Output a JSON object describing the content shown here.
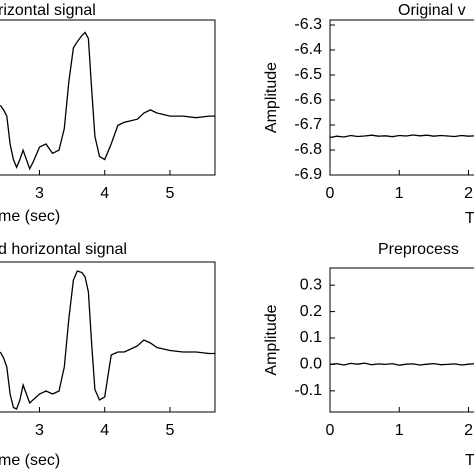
{
  "chart_data": [
    {
      "type": "line",
      "title": "rizontal signal",
      "xlabel": "me (sec)",
      "color": "#000000",
      "x": [
        2.4,
        2.45,
        2.5,
        2.55,
        2.6,
        2.65,
        2.7,
        2.75,
        2.8,
        2.85,
        2.9,
        3.0,
        3.1,
        3.2,
        3.3,
        3.38,
        3.45,
        3.52,
        3.58,
        3.65,
        3.7,
        3.75,
        3.8,
        3.85,
        3.92,
        4.0,
        4.1,
        4.2,
        4.3,
        4.4,
        4.5,
        4.6,
        4.7,
        4.8,
        4.9,
        5.0,
        5.2,
        5.4,
        5.6,
        5.69
      ],
      "values": [
        0.45,
        0.42,
        0.38,
        0.2,
        0.1,
        0.05,
        0.1,
        0.16,
        0.1,
        0.04,
        0.08,
        0.18,
        0.2,
        0.14,
        0.16,
        0.3,
        0.6,
        0.82,
        0.86,
        0.9,
        0.92,
        0.88,
        0.55,
        0.25,
        0.12,
        0.1,
        0.2,
        0.32,
        0.34,
        0.35,
        0.36,
        0.4,
        0.42,
        0.4,
        0.39,
        0.38,
        0.38,
        0.37,
        0.38,
        0.38
      ],
      "xlim": [
        2.38,
        5.69
      ],
      "ylim": [
        0,
        1
      ],
      "xticks": [
        3,
        4,
        5
      ]
    },
    {
      "type": "line",
      "title": "Original v",
      "xlabel": "T",
      "ylabel": "Amplitude",
      "color": "#000000",
      "x": [
        0,
        0.1,
        0.2,
        0.3,
        0.4,
        0.5,
        0.6,
        0.7,
        0.8,
        0.9,
        1.0,
        1.1,
        1.2,
        1.3,
        1.4,
        1.5,
        1.6,
        1.7,
        1.8,
        1.9,
        2.0,
        2.1,
        2.2,
        2.31
      ],
      "values": [
        -6.75,
        -6.745,
        -6.748,
        -6.742,
        -6.746,
        -6.744,
        -6.741,
        -6.745,
        -6.743,
        -6.747,
        -6.742,
        -6.744,
        -6.74,
        -6.743,
        -6.741,
        -6.745,
        -6.742,
        -6.744,
        -6.746,
        -6.742,
        -6.745,
        -6.743,
        -6.746,
        -6.744
      ],
      "xlim": [
        0,
        2.31
      ],
      "ylim": [
        -6.9,
        -6.28
      ],
      "xticks": [
        0,
        1,
        2
      ],
      "yticks": [
        -6.9,
        -6.8,
        -6.7,
        -6.6,
        -6.5,
        -6.4,
        -6.3
      ]
    },
    {
      "type": "line",
      "title": "d horizontal signal",
      "xlabel": "me (sec)",
      "color": "#000000",
      "x": [
        2.4,
        2.45,
        2.5,
        2.55,
        2.6,
        2.65,
        2.7,
        2.75,
        2.8,
        2.85,
        2.9,
        3.0,
        3.1,
        3.2,
        3.3,
        3.38,
        3.45,
        3.52,
        3.58,
        3.65,
        3.7,
        3.75,
        3.8,
        3.85,
        3.92,
        4.0,
        4.1,
        4.2,
        4.3,
        4.4,
        4.5,
        4.6,
        4.7,
        4.8,
        4.9,
        5.0,
        5.2,
        5.4,
        5.6,
        5.69
      ],
      "values": [
        0.4,
        0.36,
        0.3,
        0.12,
        0.03,
        0.02,
        0.08,
        0.18,
        0.12,
        0.06,
        0.08,
        0.12,
        0.14,
        0.12,
        0.14,
        0.3,
        0.62,
        0.88,
        0.94,
        0.93,
        0.9,
        0.8,
        0.45,
        0.15,
        0.08,
        0.1,
        0.38,
        0.4,
        0.4,
        0.42,
        0.44,
        0.48,
        0.46,
        0.43,
        0.42,
        0.41,
        0.4,
        0.4,
        0.39,
        0.39
      ],
      "xlim": [
        2.38,
        5.69
      ],
      "ylim": [
        0,
        1
      ],
      "xticks": [
        3,
        4,
        5
      ]
    },
    {
      "type": "line",
      "title": "Preprocess",
      "xlabel": "T",
      "ylabel": "Amplitude",
      "color": "#000000",
      "x": [
        0,
        0.1,
        0.2,
        0.3,
        0.4,
        0.5,
        0.6,
        0.7,
        0.8,
        0.9,
        1.0,
        1.1,
        1.2,
        1.3,
        1.4,
        1.5,
        1.6,
        1.7,
        1.8,
        1.9,
        2.0,
        2.1,
        2.2,
        2.31
      ],
      "values": [
        0.0,
        0.003,
        -0.002,
        0.004,
        0.001,
        0.005,
        -0.001,
        0.002,
        0.0,
        0.003,
        -0.003,
        0.001,
        0.002,
        -0.002,
        0.001,
        0.003,
        -0.001,
        0.0,
        0.002,
        -0.002,
        0.001,
        0.003,
        0.0,
        0.001
      ],
      "xlim": [
        0,
        2.31
      ],
      "ylim": [
        -0.18,
        0.365
      ],
      "xticks": [
        0,
        1,
        2
      ],
      "yticks": [
        -0.1,
        {
          "value": 0,
          "label": "0.0"
        },
        0.1,
        0.2,
        0.3
      ]
    }
  ]
}
